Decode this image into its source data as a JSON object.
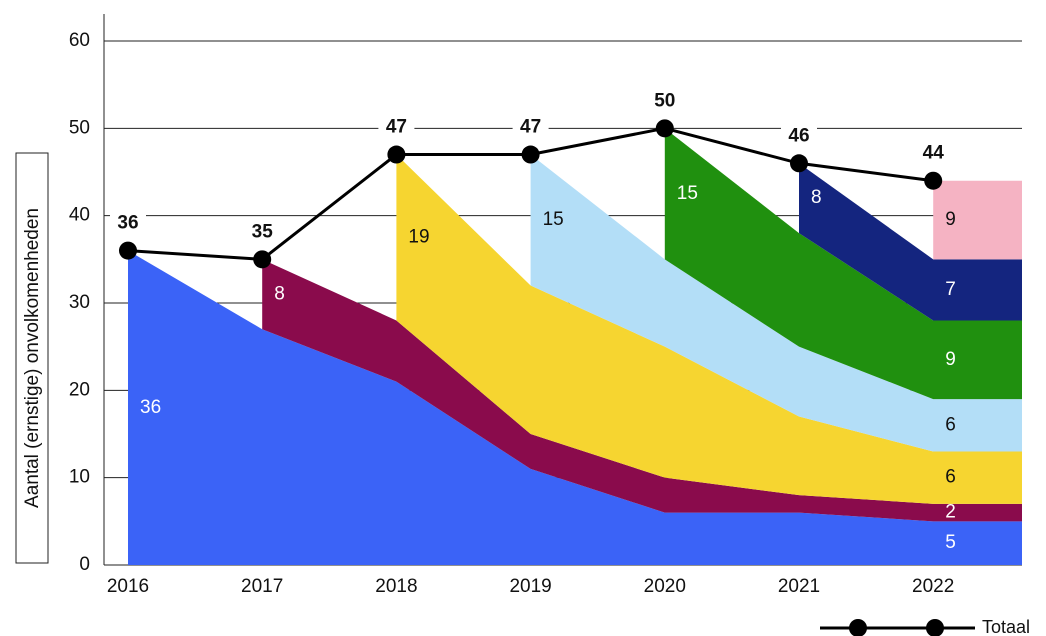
{
  "chart_data": {
    "type": "stacked_area",
    "y_label": "Aantal (ernstige) onvolkomenheden",
    "categories": [
      "2016",
      "2017",
      "2018",
      "2019",
      "2020",
      "2021",
      "2022"
    ],
    "ylim": [
      0,
      60
    ],
    "yticks": [
      0,
      10,
      20,
      30,
      40,
      50,
      60
    ],
    "grid": true,
    "legend": "bottom-right",
    "series": [
      {
        "color": "#3b63f7",
        "values": [
          36,
          27,
          21,
          11,
          6,
          6,
          5
        ]
      },
      {
        "color": "#8a0b4c",
        "values": [
          null,
          8,
          7,
          4,
          4,
          2,
          2
        ]
      },
      {
        "color": "#f6d530",
        "values": [
          null,
          null,
          19,
          17,
          15,
          9,
          6
        ]
      },
      {
        "color": "#b3def7",
        "values": [
          null,
          null,
          null,
          15,
          10,
          8,
          6
        ]
      },
      {
        "color": "#20900f",
        "values": [
          null,
          null,
          null,
          null,
          15,
          13,
          9
        ]
      },
      {
        "color": "#14257f",
        "values": [
          null,
          null,
          null,
          null,
          null,
          8,
          7
        ]
      },
      {
        "color": "#f5b3c3",
        "values": [
          null,
          null,
          null,
          null,
          null,
          null,
          9
        ]
      }
    ],
    "total": {
      "name": "Totaal",
      "type": "line",
      "color": "#000000",
      "values": [
        36,
        35,
        47,
        47,
        50,
        46,
        44
      ]
    }
  }
}
